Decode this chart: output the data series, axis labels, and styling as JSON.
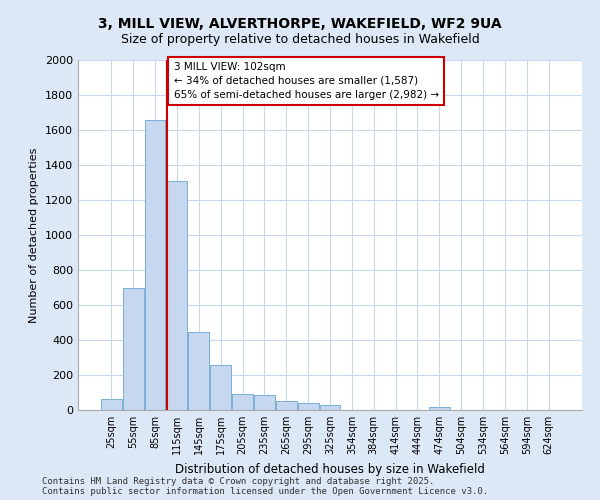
{
  "title_line1": "3, MILL VIEW, ALVERTHORPE, WAKEFIELD, WF2 9UA",
  "title_line2": "Size of property relative to detached houses in Wakefield",
  "xlabel": "Distribution of detached houses by size in Wakefield",
  "ylabel": "Number of detached properties",
  "categories": [
    "25sqm",
    "55sqm",
    "85sqm",
    "115sqm",
    "145sqm",
    "175sqm",
    "205sqm",
    "235sqm",
    "265sqm",
    "295sqm",
    "325sqm",
    "354sqm",
    "384sqm",
    "414sqm",
    "444sqm",
    "474sqm",
    "504sqm",
    "534sqm",
    "564sqm",
    "594sqm",
    "624sqm"
  ],
  "values": [
    65,
    700,
    1660,
    1310,
    445,
    255,
    90,
    85,
    50,
    40,
    28,
    0,
    0,
    0,
    0,
    20,
    0,
    0,
    0,
    0,
    0
  ],
  "bar_color": "#c5d8ef",
  "bar_edge_color": "#7aafd4",
  "grid_color": "#c8d8ea",
  "plot_bg_color": "#ffffff",
  "figure_bg_color": "#dce8f5",
  "red_color": "#cc0000",
  "annotation_text": "3 MILL VIEW: 102sqm\n← 34% of detached houses are smaller (1,587)\n65% of semi-detached houses are larger (2,982) →",
  "property_line_x": 2.55,
  "ylim_max": 2000,
  "yticks": [
    0,
    200,
    400,
    600,
    800,
    1000,
    1200,
    1400,
    1600,
    1800,
    2000
  ],
  "footnote_line1": "Contains HM Land Registry data © Crown copyright and database right 2025.",
  "footnote_line2": "Contains public sector information licensed under the Open Government Licence v3.0."
}
